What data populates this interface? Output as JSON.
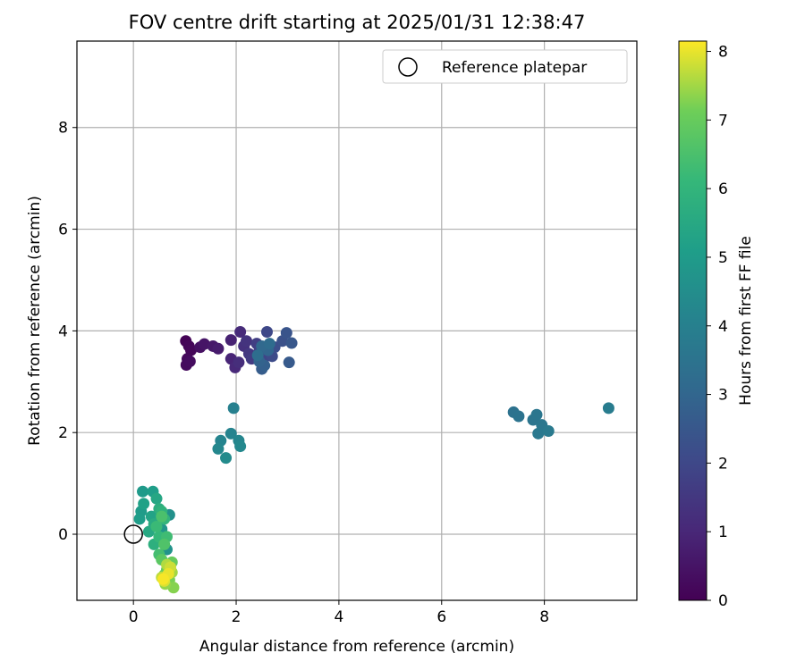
{
  "chart_data": {
    "type": "scatter",
    "title": "FOV centre drift starting at 2025/01/31 12:38:47",
    "xlabel": "Angular distance from reference (arcmin)",
    "ylabel": "Rotation from reference (arcmin)",
    "xlim": [
      -1.1,
      9.8
    ],
    "ylim": [
      -1.3,
      9.7
    ],
    "x_ticks": [
      0,
      2,
      4,
      6,
      8
    ],
    "y_ticks": [
      0,
      2,
      4,
      6,
      8
    ],
    "grid": true,
    "legend": {
      "position": "top-right",
      "entries": [
        "Reference platepar"
      ]
    },
    "colorbar": {
      "label": "Hours from first FF file",
      "colormap": "viridis",
      "range": [
        0,
        8.15
      ],
      "ticks": [
        0,
        1,
        2,
        3,
        4,
        5,
        6,
        7,
        8
      ]
    },
    "reference_point": {
      "x": 0,
      "y": 0,
      "label": "Reference platepar"
    },
    "points": [
      {
        "x": 1.02,
        "y": 3.8,
        "t": 0.05
      },
      {
        "x": 1.08,
        "y": 3.7,
        "t": 0.1
      },
      {
        "x": 1.12,
        "y": 3.62,
        "t": 0.15
      },
      {
        "x": 1.05,
        "y": 3.45,
        "t": 0.2
      },
      {
        "x": 1.03,
        "y": 3.33,
        "t": 0.25
      },
      {
        "x": 1.1,
        "y": 3.4,
        "t": 0.3
      },
      {
        "x": 1.3,
        "y": 3.68,
        "t": 0.4
      },
      {
        "x": 1.38,
        "y": 3.74,
        "t": 0.5
      },
      {
        "x": 1.55,
        "y": 3.7,
        "t": 0.6
      },
      {
        "x": 1.65,
        "y": 3.65,
        "t": 0.7
      },
      {
        "x": 1.9,
        "y": 3.82,
        "t": 0.85
      },
      {
        "x": 1.9,
        "y": 3.45,
        "t": 0.95
      },
      {
        "x": 1.98,
        "y": 3.28,
        "t": 1.05
      },
      {
        "x": 2.08,
        "y": 3.98,
        "t": 1.1
      },
      {
        "x": 2.05,
        "y": 3.38,
        "t": 1.2
      },
      {
        "x": 2.15,
        "y": 3.7,
        "t": 1.3
      },
      {
        "x": 2.2,
        "y": 3.8,
        "t": 1.4
      },
      {
        "x": 2.25,
        "y": 3.55,
        "t": 1.5
      },
      {
        "x": 2.3,
        "y": 3.45,
        "t": 1.6
      },
      {
        "x": 2.4,
        "y": 3.75,
        "t": 1.7
      },
      {
        "x": 2.45,
        "y": 3.6,
        "t": 1.8
      },
      {
        "x": 2.55,
        "y": 3.48,
        "t": 1.9
      },
      {
        "x": 2.6,
        "y": 3.98,
        "t": 2.0
      },
      {
        "x": 2.7,
        "y": 3.5,
        "t": 2.1
      },
      {
        "x": 2.75,
        "y": 3.68,
        "t": 2.2
      },
      {
        "x": 2.9,
        "y": 3.8,
        "t": 2.3
      },
      {
        "x": 2.98,
        "y": 3.96,
        "t": 2.4
      },
      {
        "x": 3.08,
        "y": 3.76,
        "t": 2.5
      },
      {
        "x": 3.03,
        "y": 3.38,
        "t": 2.6
      },
      {
        "x": 2.5,
        "y": 3.25,
        "t": 2.7
      },
      {
        "x": 2.55,
        "y": 3.32,
        "t": 2.8
      },
      {
        "x": 2.45,
        "y": 3.4,
        "t": 2.9
      },
      {
        "x": 2.62,
        "y": 3.62,
        "t": 3.0
      },
      {
        "x": 2.5,
        "y": 3.7,
        "t": 3.1
      },
      {
        "x": 2.65,
        "y": 3.75,
        "t": 3.2
      },
      {
        "x": 2.42,
        "y": 3.52,
        "t": 3.3
      },
      {
        "x": 7.4,
        "y": 2.4,
        "t": 3.45
      },
      {
        "x": 7.5,
        "y": 2.32,
        "t": 3.5
      },
      {
        "x": 7.78,
        "y": 2.25,
        "t": 3.55
      },
      {
        "x": 7.85,
        "y": 2.35,
        "t": 3.6
      },
      {
        "x": 7.95,
        "y": 2.15,
        "t": 3.65
      },
      {
        "x": 7.88,
        "y": 1.98,
        "t": 3.7
      },
      {
        "x": 8.08,
        "y": 2.03,
        "t": 3.75
      },
      {
        "x": 9.25,
        "y": 2.48,
        "t": 3.85
      },
      {
        "x": 1.95,
        "y": 2.48,
        "t": 4.0
      },
      {
        "x": 1.9,
        "y": 1.98,
        "t": 4.1
      },
      {
        "x": 1.7,
        "y": 1.84,
        "t": 4.15
      },
      {
        "x": 2.05,
        "y": 1.84,
        "t": 4.2
      },
      {
        "x": 1.65,
        "y": 1.68,
        "t": 4.25
      },
      {
        "x": 2.08,
        "y": 1.73,
        "t": 4.3
      },
      {
        "x": 1.8,
        "y": 1.5,
        "t": 4.4
      },
      {
        "x": 0.7,
        "y": 0.38,
        "t": 4.6
      },
      {
        "x": 0.65,
        "y": -0.3,
        "t": 4.7
      },
      {
        "x": 0.55,
        "y": 0.1,
        "t": 4.8
      },
      {
        "x": 0.18,
        "y": 0.84,
        "t": 4.95
      },
      {
        "x": 0.15,
        "y": 0.45,
        "t": 5.0
      },
      {
        "x": 0.12,
        "y": 0.3,
        "t": 5.05
      },
      {
        "x": 0.38,
        "y": 0.84,
        "t": 5.1
      },
      {
        "x": 0.2,
        "y": 0.6,
        "t": 5.2
      },
      {
        "x": 0.35,
        "y": 0.35,
        "t": 5.3
      },
      {
        "x": 0.45,
        "y": 0.7,
        "t": 5.4
      },
      {
        "x": 0.3,
        "y": 0.05,
        "t": 5.5
      },
      {
        "x": 0.4,
        "y": 0.2,
        "t": 5.6
      },
      {
        "x": 0.5,
        "y": 0.5,
        "t": 5.7
      },
      {
        "x": 0.4,
        "y": -0.2,
        "t": 5.8
      },
      {
        "x": 0.55,
        "y": 0.45,
        "t": 5.9
      },
      {
        "x": 0.6,
        "y": 0.3,
        "t": 6.0
      },
      {
        "x": 0.5,
        "y": -0.05,
        "t": 6.1
      },
      {
        "x": 0.45,
        "y": 0.15,
        "t": 6.2
      },
      {
        "x": 0.65,
        "y": -0.05,
        "t": 6.3
      },
      {
        "x": 0.5,
        "y": -0.4,
        "t": 6.4
      },
      {
        "x": 0.55,
        "y": 0.35,
        "t": 6.5
      },
      {
        "x": 0.6,
        "y": -0.2,
        "t": 6.6
      },
      {
        "x": 0.7,
        "y": -0.6,
        "t": 6.7
      },
      {
        "x": 0.55,
        "y": -0.5,
        "t": 6.8
      },
      {
        "x": 0.65,
        "y": -0.7,
        "t": 6.9
      },
      {
        "x": 0.75,
        "y": -0.55,
        "t": 7.0
      },
      {
        "x": 0.6,
        "y": -0.8,
        "t": 7.1
      },
      {
        "x": 0.7,
        "y": -0.9,
        "t": 7.2
      },
      {
        "x": 0.78,
        "y": -1.05,
        "t": 7.3
      },
      {
        "x": 0.62,
        "y": -0.98,
        "t": 7.4
      },
      {
        "x": 0.75,
        "y": -0.75,
        "t": 7.5
      },
      {
        "x": 0.65,
        "y": -0.6,
        "t": 7.6
      },
      {
        "x": 0.55,
        "y": -0.85,
        "t": 7.7
      },
      {
        "x": 0.72,
        "y": -0.65,
        "t": 7.8
      },
      {
        "x": 0.6,
        "y": -0.92,
        "t": 7.9
      },
      {
        "x": 0.68,
        "y": -0.78,
        "t": 8.0
      },
      {
        "x": 0.58,
        "y": -0.88,
        "t": 8.1
      }
    ]
  }
}
